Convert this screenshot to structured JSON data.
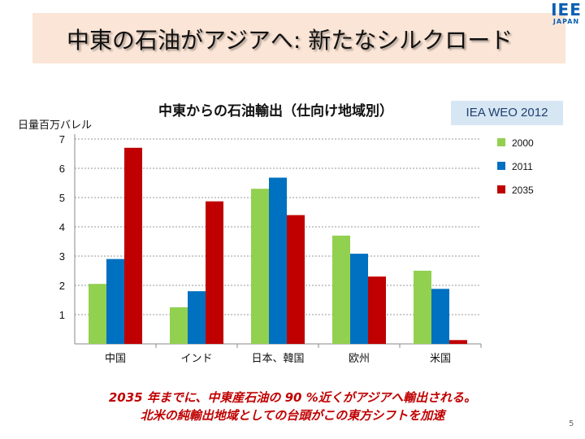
{
  "slide": {
    "title": "中東の石油がアジアへ: 新たなシルクロード",
    "logo_main": "IEE",
    "logo_sub": "JAPAN",
    "source": "IEA WEO 2012",
    "note_line1": "2035 年までに、中東産石油の 90 %近くがアジアへ輸出される。",
    "note_line2": "北米の純輸出地域としての台頭がこの東方シフトを加速",
    "page_number": "5"
  },
  "chart_data": {
    "type": "bar",
    "title": "中東からの石油輸出（仕向け地域別）",
    "ylabel": "日量百万バレル",
    "xlabel": "",
    "ylim": [
      0,
      7
    ],
    "yticks": [
      1,
      2,
      3,
      4,
      5,
      6,
      7
    ],
    "grid": true,
    "legend_position": "right",
    "categories": [
      "中国",
      "インド",
      "日本、韓国",
      "欧州",
      "米国"
    ],
    "series": [
      {
        "name": "2000",
        "color": "#92d050",
        "values": [
          2.05,
          1.25,
          5.3,
          3.7,
          2.5
        ]
      },
      {
        "name": "2011",
        "color": "#0070c0",
        "values": [
          2.9,
          1.8,
          5.68,
          3.08,
          1.88
        ]
      },
      {
        "name": "2035",
        "color": "#c00000",
        "values": [
          6.7,
          4.87,
          4.4,
          2.3,
          0.13
        ]
      }
    ]
  }
}
